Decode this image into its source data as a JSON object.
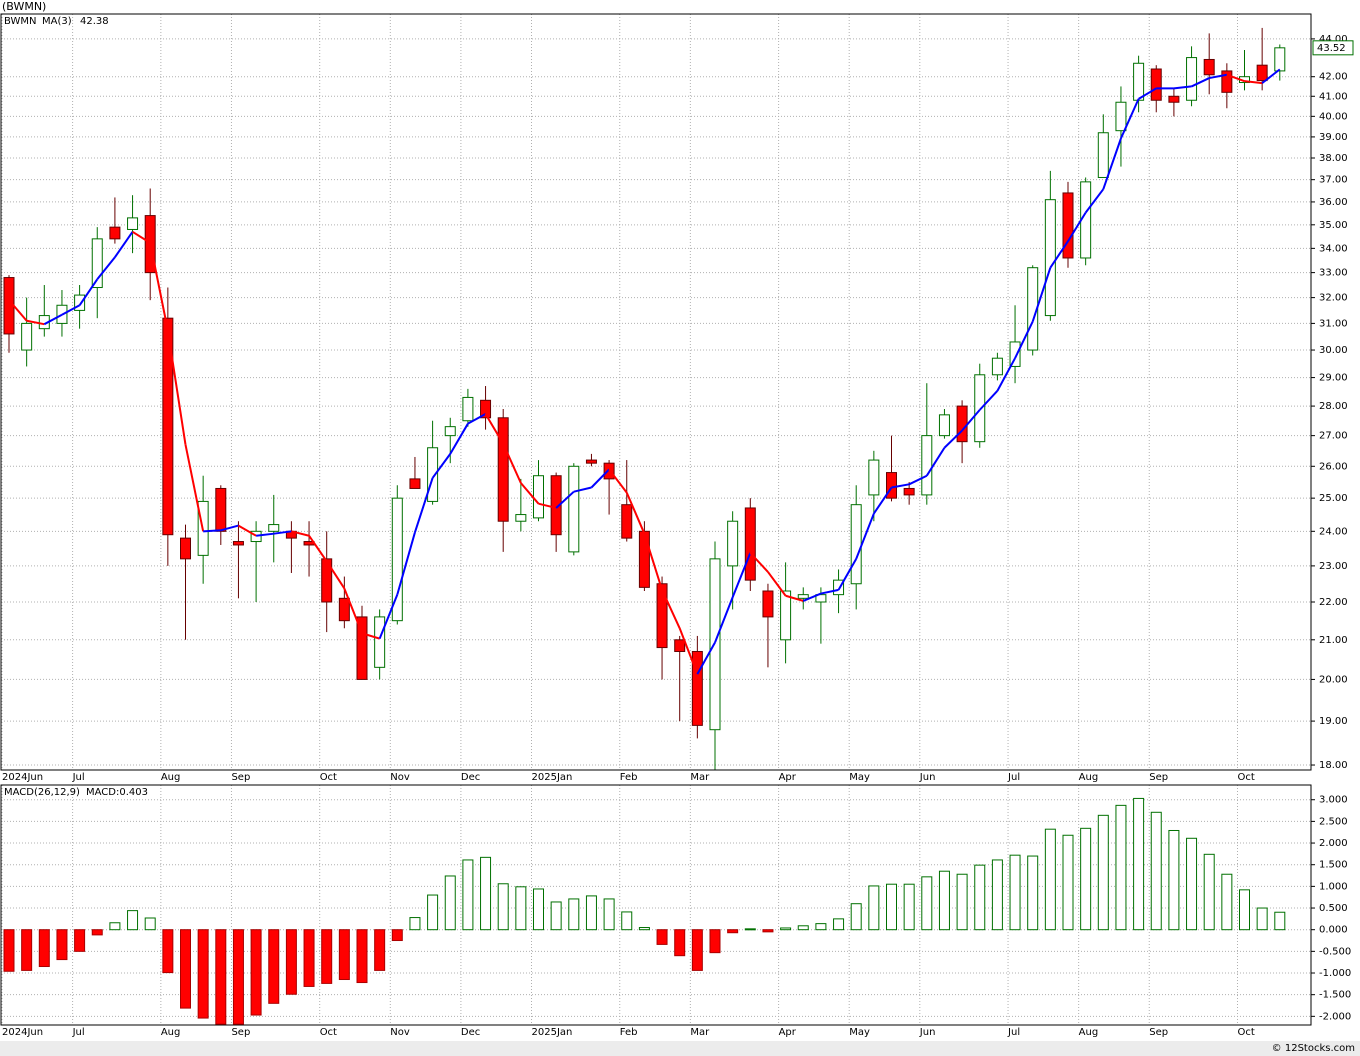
{
  "chart_data": [
    {
      "type": "candlestick",
      "title": "(BWMN)",
      "legend_name": "BWMN",
      "legend_color": "#008000",
      "categories": [
        "2024Jun",
        null,
        null,
        null,
        "Jul",
        null,
        null,
        null,
        null,
        "Aug",
        null,
        null,
        null,
        "Sep",
        null,
        null,
        null,
        null,
        "Oct",
        null,
        null,
        null,
        "Nov",
        null,
        null,
        null,
        "Dec",
        null,
        null,
        null,
        "2025Jan",
        null,
        null,
        null,
        null,
        "Feb",
        null,
        null,
        null,
        "Mar",
        null,
        null,
        null,
        null,
        "Apr",
        null,
        null,
        null,
        "May",
        null,
        null,
        null,
        "Jun",
        null,
        null,
        null,
        null,
        "Jul",
        null,
        null,
        null,
        "Aug",
        null,
        null,
        null,
        "Sep",
        null,
        null,
        null,
        null,
        "Oct",
        null,
        null
      ],
      "open": [
        32.8,
        30.0,
        30.8,
        31.0,
        31.5,
        32.4,
        34.9,
        34.8,
        35.4,
        31.2,
        23.8,
        23.3,
        25.3,
        23.7,
        23.7,
        24.0,
        24.0,
        23.7,
        23.2,
        22.1,
        21.6,
        20.3,
        21.5,
        25.6,
        24.9,
        27.0,
        27.5,
        28.2,
        27.6,
        24.3,
        24.4,
        25.7,
        23.4,
        26.2,
        26.1,
        24.8,
        24.0,
        22.5,
        21.0,
        20.7,
        18.8,
        23.0,
        24.7,
        22.3,
        21.0,
        22.1,
        22.0,
        22.2,
        22.5,
        25.1,
        25.8,
        25.3,
        25.1,
        27.0,
        28.0,
        26.8,
        29.1,
        29.4,
        30.0,
        31.3,
        36.4,
        33.6,
        37.1,
        39.3,
        40.8,
        42.4,
        41.0,
        40.8,
        42.9,
        42.3,
        41.7,
        42.6,
        42.3
      ],
      "high": [
        32.9,
        32.0,
        32.5,
        32.3,
        32.5,
        34.9,
        36.2,
        36.3,
        36.6,
        32.4,
        24.2,
        25.7,
        25.4,
        24.3,
        24.3,
        25.1,
        24.3,
        24.3,
        24.0,
        22.7,
        21.9,
        21.8,
        25.4,
        26.3,
        27.5,
        27.6,
        28.6,
        28.7,
        27.9,
        25.6,
        26.2,
        25.8,
        26.1,
        26.4,
        26.2,
        26.2,
        24.3,
        22.7,
        21.1,
        21.1,
        23.7,
        24.6,
        25.0,
        22.5,
        23.1,
        22.4,
        22.4,
        22.9,
        25.4,
        26.5,
        27.0,
        25.5,
        28.8,
        27.9,
        28.2,
        29.5,
        29.9,
        31.7,
        33.3,
        37.4,
        36.9,
        37.1,
        40.1,
        41.5,
        43.1,
        42.6,
        41.4,
        43.6,
        44.3,
        42.7,
        43.4,
        44.6,
        43.7
      ],
      "low": [
        29.9,
        29.4,
        30.5,
        30.5,
        30.8,
        31.2,
        34.2,
        33.8,
        31.9,
        23.0,
        21.0,
        22.5,
        23.6,
        22.1,
        22.0,
        23.1,
        22.8,
        22.7,
        21.2,
        21.3,
        20.0,
        20.0,
        21.4,
        25.3,
        24.8,
        26.1,
        27.3,
        27.2,
        23.4,
        24.0,
        24.3,
        23.4,
        23.3,
        26.0,
        24.5,
        23.7,
        22.3,
        20.0,
        19.0,
        18.6,
        17.9,
        21.8,
        22.3,
        20.3,
        20.4,
        21.8,
        20.9,
        21.7,
        21.8,
        24.3,
        24.9,
        24.8,
        24.8,
        26.9,
        26.1,
        26.6,
        28.9,
        28.8,
        29.8,
        31.1,
        33.2,
        33.3,
        37.1,
        37.6,
        40.2,
        40.2,
        40.0,
        40.5,
        41.1,
        40.4,
        41.3,
        41.3,
        41.8
      ],
      "close": [
        30.6,
        31.0,
        31.3,
        31.7,
        32.1,
        34.4,
        34.4,
        35.3,
        33.0,
        23.9,
        23.2,
        24.9,
        24.0,
        23.6,
        24.0,
        24.2,
        23.8,
        23.6,
        22.0,
        21.5,
        20.0,
        21.6,
        25.0,
        25.3,
        26.6,
        27.3,
        28.3,
        27.6,
        24.3,
        24.5,
        25.7,
        23.9,
        26.0,
        26.1,
        25.6,
        23.8,
        22.4,
        20.8,
        20.7,
        18.9,
        23.2,
        24.3,
        22.6,
        21.6,
        22.3,
        22.2,
        22.2,
        22.6,
        24.8,
        26.2,
        25.0,
        25.1,
        27.0,
        27.7,
        26.8,
        29.1,
        29.7,
        30.3,
        33.2,
        36.1,
        33.6,
        36.9,
        39.2,
        40.7,
        42.7,
        40.8,
        40.7,
        43.0,
        42.1,
        41.2,
        42.0,
        41.8,
        43.52
      ],
      "up_color": "#007000",
      "down_color": "#ff0000",
      "series": [
        {
          "name": "MA(3)",
          "color": "#0000ff",
          "down_color": "#ff0000",
          "values": [
            31.9,
            31.1,
            30.97,
            31.33,
            31.7,
            32.73,
            33.63,
            34.7,
            34.23,
            30.73,
            26.7,
            24.0,
            24.03,
            24.17,
            23.87,
            23.93,
            24.0,
            23.87,
            23.13,
            22.37,
            21.17,
            21.03,
            22.2,
            23.97,
            25.63,
            26.4,
            27.4,
            27.73,
            26.73,
            25.47,
            24.83,
            24.7,
            25.2,
            25.33,
            25.9,
            25.17,
            23.93,
            22.33,
            21.3,
            20.13,
            20.93,
            22.13,
            23.37,
            22.83,
            22.17,
            22.03,
            22.23,
            22.33,
            23.2,
            24.53,
            25.33,
            25.43,
            25.7,
            26.6,
            27.17,
            27.87,
            28.53,
            29.7,
            31.07,
            33.2,
            34.3,
            35.53,
            36.57,
            38.93,
            40.87,
            41.4,
            41.4,
            41.5,
            41.93,
            42.1,
            41.77,
            41.67,
            42.38
          ]
        }
      ],
      "log_scale": true,
      "grid": true,
      "ylim": [
        17.89,
        45.37
      ],
      "yticks": [
        {
          "value": 44,
          "label": "44.00"
        },
        {
          "value": 42,
          "label": "42.00"
        },
        {
          "value": 41,
          "label": "41.00"
        },
        {
          "value": 40,
          "label": "40.00"
        },
        {
          "value": 39,
          "label": "39.00"
        },
        {
          "value": 38,
          "label": "38.00"
        },
        {
          "value": 37,
          "label": "37.00"
        },
        {
          "value": 36,
          "label": "36.00"
        },
        {
          "value": 35,
          "label": "35.00"
        },
        {
          "value": 34,
          "label": "34.00"
        },
        {
          "value": 33,
          "label": "33.00"
        },
        {
          "value": 32,
          "label": "32.00"
        },
        {
          "value": 31,
          "label": "31.00"
        },
        {
          "value": 30,
          "label": "30.00"
        },
        {
          "value": 29,
          "label": "29.00"
        },
        {
          "value": 28,
          "label": "28.00"
        },
        {
          "value": 27,
          "label": "27.00"
        },
        {
          "value": 26,
          "label": "26.00"
        },
        {
          "value": 25,
          "label": "25.00"
        },
        {
          "value": 24,
          "label": "24.00"
        },
        {
          "value": 23,
          "label": "23.00"
        },
        {
          "value": 22,
          "label": "22.00"
        },
        {
          "value": 21,
          "label": "21.00"
        },
        {
          "value": 20,
          "label": "20.00"
        },
        {
          "value": 19,
          "label": "19.00"
        },
        {
          "value": 18,
          "label": "18.00"
        }
      ]
    },
    {
      "type": "histogram-bar",
      "title": "MACD(26,12,9)",
      "subtitle": "MACD:0.403",
      "subtitle_color": "#0000ff",
      "categories": [
        "2024Jun",
        null,
        null,
        null,
        "Jul",
        null,
        null,
        null,
        null,
        "Aug",
        null,
        null,
        null,
        "Sep",
        null,
        null,
        null,
        null,
        "Oct",
        null,
        null,
        null,
        "Nov",
        null,
        null,
        null,
        "Dec",
        null,
        null,
        null,
        "2025Jan",
        null,
        null,
        null,
        null,
        "Feb",
        null,
        null,
        null,
        "Mar",
        null,
        null,
        null,
        null,
        "Apr",
        null,
        null,
        null,
        "May",
        null,
        null,
        null,
        "Jun",
        null,
        null,
        null,
        null,
        "Jul",
        null,
        null,
        null,
        "Aug",
        null,
        null,
        null,
        "Sep",
        null,
        null,
        null,
        null,
        "Oct",
        null,
        null
      ],
      "values": [
        -0.96,
        -0.94,
        -0.85,
        -0.69,
        -0.5,
        -0.12,
        0.16,
        0.44,
        0.27,
        -0.99,
        -1.81,
        -2.04,
        -2.18,
        -2.18,
        -1.97,
        -1.7,
        -1.49,
        -1.31,
        -1.24,
        -1.15,
        -1.22,
        -0.94,
        -0.25,
        0.28,
        0.8,
        1.24,
        1.61,
        1.67,
        1.06,
        0.99,
        0.94,
        0.64,
        0.71,
        0.78,
        0.71,
        0.41,
        0.05,
        -0.34,
        -0.6,
        -0.94,
        -0.53,
        -0.07,
        0.02,
        -0.05,
        0.04,
        0.09,
        0.14,
        0.25,
        0.6,
        1.01,
        1.05,
        1.05,
        1.22,
        1.35,
        1.28,
        1.49,
        1.61,
        1.72,
        1.7,
        2.32,
        2.18,
        2.34,
        2.64,
        2.87,
        3.03,
        2.71,
        2.29,
        2.11,
        1.74,
        1.28,
        0.92,
        0.5,
        0.403
      ],
      "up_color": "#007000",
      "down_color": "#ff0000",
      "grid": true,
      "ylim": [
        -2.2,
        3.34
      ],
      "yticks": [
        {
          "value": 3,
          "label": "3.000"
        },
        {
          "value": 2.5,
          "label": "2.500"
        },
        {
          "value": 2,
          "label": "2.000"
        },
        {
          "value": 1.5,
          "label": "1.500"
        },
        {
          "value": 1,
          "label": "1.000"
        },
        {
          "value": 0.5,
          "label": "0.500"
        },
        {
          "value": 0,
          "label": "0.000"
        },
        {
          "value": -0.5,
          "label": "-0.500"
        },
        {
          "value": -1,
          "label": "-1.000"
        },
        {
          "value": -1.5,
          "label": "-1.500"
        },
        {
          "value": -2,
          "label": "-2.000"
        }
      ]
    }
  ],
  "footer": "© 12Stocks.com"
}
